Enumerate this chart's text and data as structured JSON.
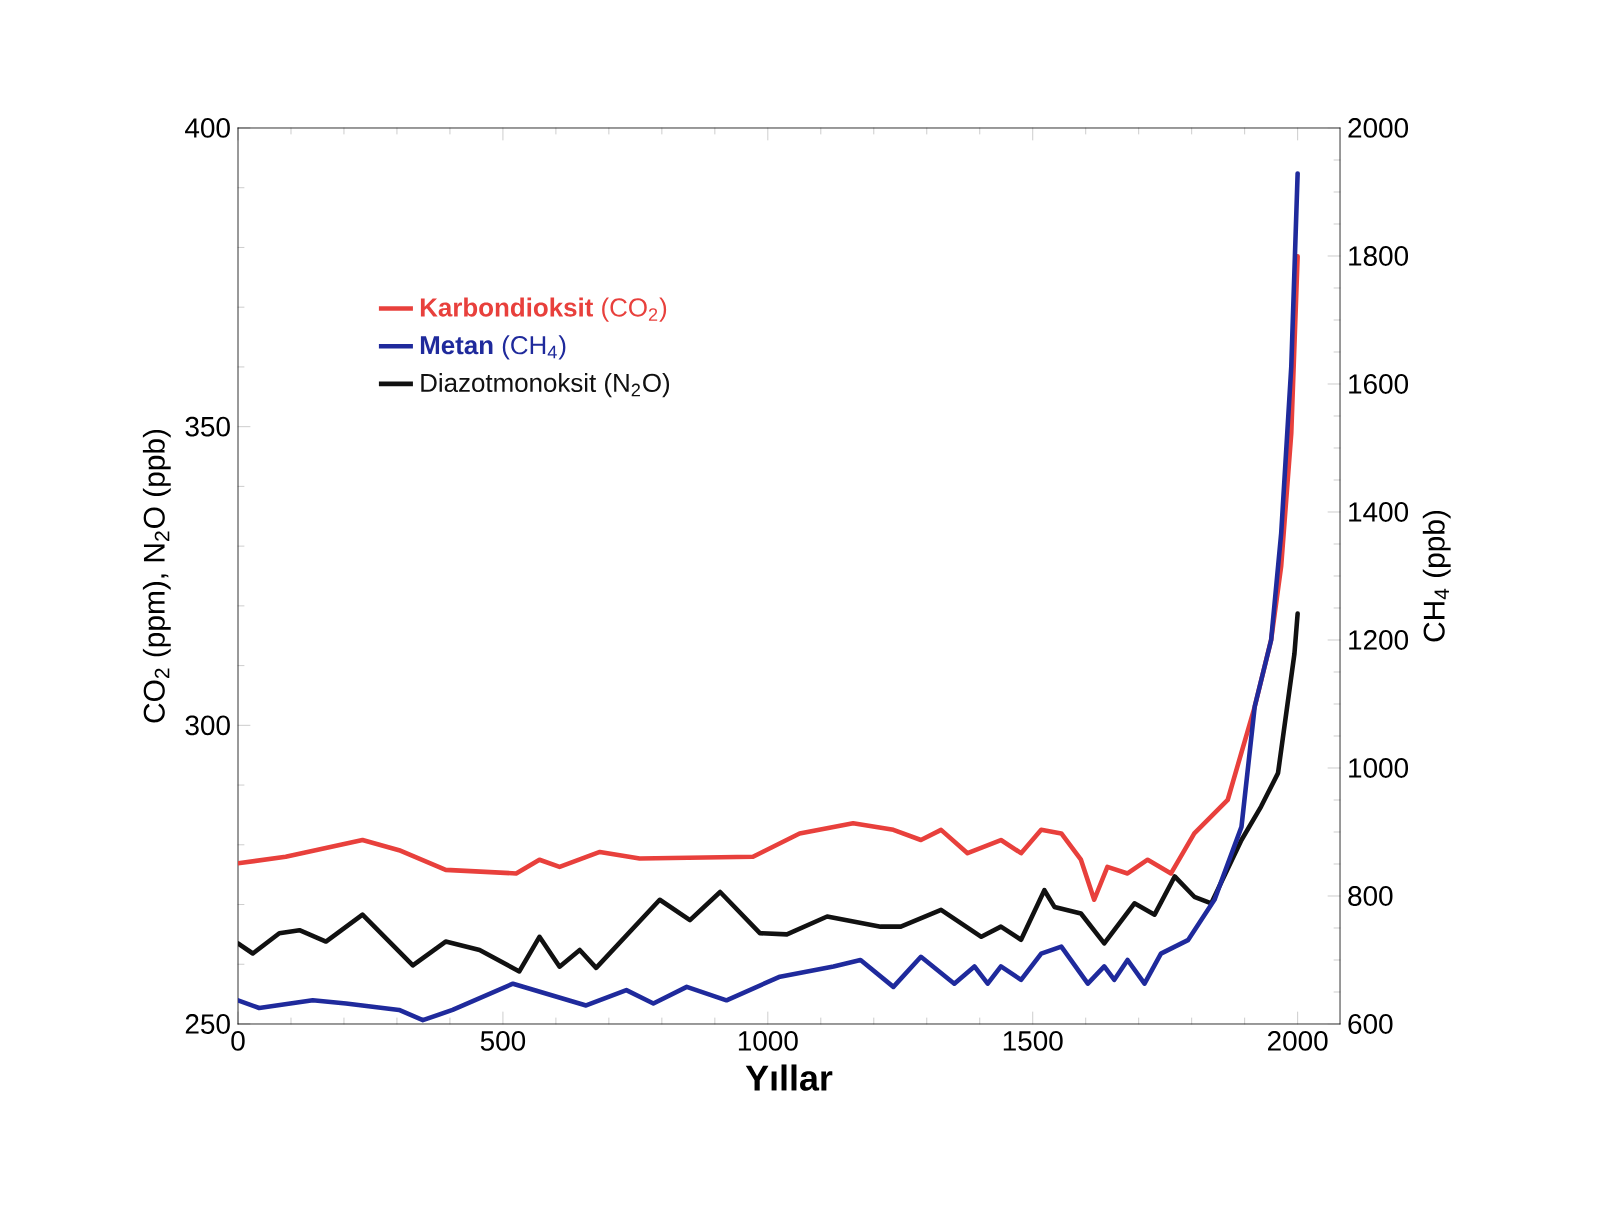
{
  "chart_data": {
    "type": "line",
    "xlabel": "Yıllar",
    "ylabel": "CO$_{2}$ (ppm), N$_{2}$O (ppb)",
    "y2label": "CH$_{4}$ (ppb)",
    "xlim": [
      0,
      2080
    ],
    "xticks": [
      0,
      500,
      1000,
      1500,
      2000
    ],
    "ylim": [
      250,
      400
    ],
    "yticks": [
      250,
      300,
      350,
      400
    ],
    "y2lim": [
      600,
      2000
    ],
    "y2ticks": [
      600,
      800,
      1000,
      1200,
      1400,
      1600,
      1800,
      2000
    ],
    "legend": "top left",
    "grid": false,
    "marker": "none",
    "line_style": "solid",
    "series": [
      {
        "name": "**Karbondioksit** (CO$_{2}$)",
        "color": "#e8403c",
        "x": [
          0,
          90,
          235,
          304,
          392,
          525,
          569,
          607,
          683,
          758,
          972,
          1060,
          1161,
          1237,
          1289,
          1327,
          1377,
          1440,
          1478,
          1516,
          1554,
          1591,
          1616,
          1641,
          1679,
          1717,
          1761,
          1805,
          1868,
          1919,
          1950,
          1969,
          1988,
          2000
        ],
        "values": [
          276.9,
          278.0,
          280.8,
          279.1,
          275.8,
          275.2,
          277.5,
          276.3,
          278.8,
          277.7,
          278.0,
          281.9,
          283.6,
          282.5,
          280.8,
          282.5,
          278.6,
          280.8,
          278.6,
          282.5,
          281.9,
          277.5,
          270.8,
          276.3,
          275.2,
          277.5,
          275.2,
          281.9,
          287.5,
          303.1,
          314.3,
          326.7,
          348.9,
          378.5
        ]
      },
      {
        "name": "**Metan** (CH$_{4}$)",
        "color": "#1f2a9c",
        "axis": "y2",
        "x": [
          0,
          40,
          141,
          204,
          304,
          349,
          405,
          519,
          657,
          733,
          784,
          847,
          922,
          1023,
          1124,
          1175,
          1237,
          1289,
          1352,
          1390,
          1415,
          1440,
          1478,
          1516,
          1554,
          1604,
          1635,
          1654,
          1679,
          1711,
          1742,
          1793,
          1843,
          1894,
          1919,
          1950,
          1969,
          1988,
          2000
        ],
        "values": [
          637,
          625,
          637,
          632,
          622,
          606,
          622,
          663,
          629,
          653,
          632,
          658,
          637,
          674,
          690,
          700,
          658,
          705,
          663,
          690,
          663,
          690,
          669,
          710,
          721,
          663,
          690,
          669,
          700,
          663,
          710,
          731,
          794,
          908,
          1096,
          1200,
          1367,
          1627,
          1929
        ]
      },
      {
        "name": "Diazotmonoksit (N$_{2}$O)",
        "color": "#111111",
        "x": [
          0,
          28,
          78,
          116,
          166,
          235,
          330,
          392,
          456,
          531,
          569,
          607,
          645,
          676,
          796,
          853,
          910,
          985,
          1036,
          1112,
          1213,
          1251,
          1327,
          1403,
          1440,
          1478,
          1522,
          1541,
          1591,
          1635,
          1692,
          1730,
          1768,
          1805,
          1837,
          1894,
          1931,
          1963,
          1994,
          2000
        ],
        "values": [
          263.5,
          261.8,
          265.2,
          265.7,
          263.8,
          268.3,
          259.8,
          263.8,
          262.4,
          258.8,
          264.6,
          259.6,
          262.4,
          259.4,
          270.8,
          267.4,
          272.1,
          265.2,
          265.0,
          268.0,
          266.3,
          266.3,
          269.1,
          264.6,
          266.3,
          264.1,
          272.4,
          269.6,
          268.5,
          263.5,
          270.2,
          268.3,
          274.7,
          271.3,
          270.2,
          280.8,
          286.4,
          292.0,
          312.0,
          318.7
        ]
      }
    ]
  }
}
